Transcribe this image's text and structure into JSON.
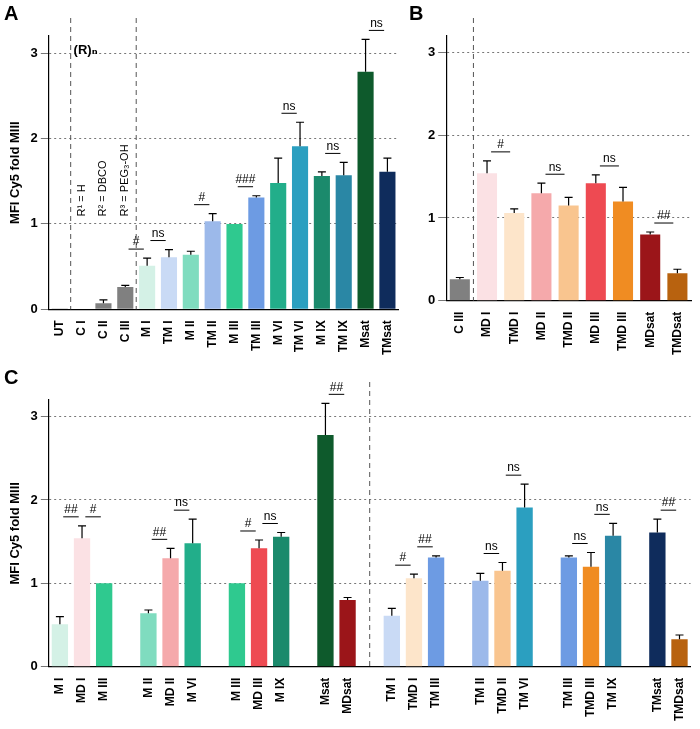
{
  "chart_data": [
    {
      "type": "bar",
      "panel": "A",
      "y_label": "MFI Cy5 fold MIII",
      "repeat_label": "(R)ₙ",
      "substituents": [
        "R¹ = H",
        "R² = DBCO",
        "R³ = PEG₃-OH"
      ],
      "categories": [
        "UT",
        "C I",
        "C II",
        "C III",
        "M I",
        "TM I",
        "M II",
        "TM II",
        "M III",
        "TM III",
        "M VI",
        "TM VI",
        "M IX",
        "TM IX",
        "Msat",
        "TMsat"
      ],
      "values": [
        0.01,
        0.0,
        0.07,
        0.26,
        0.51,
        0.61,
        0.64,
        1.03,
        1.0,
        1.31,
        1.48,
        1.91,
        1.56,
        1.57,
        2.78,
        1.61
      ],
      "errors": [
        null,
        null,
        0.04,
        0.02,
        0.09,
        0.09,
        0.04,
        0.09,
        null,
        0.02,
        0.29,
        0.28,
        0.05,
        0.15,
        0.38,
        0.16
      ],
      "colors": [
        "#808080",
        "#808080",
        "#808080",
        "#808080",
        "#d4f1e6",
        "#c9daf5",
        "#7fdcbf",
        "#9cb9ea",
        "#2fc98f",
        "#6d9be3",
        "#22ae8a",
        "#2b9fc0",
        "#1b8a6c",
        "#2a87a5",
        "#0e5a2c",
        "#0f2c5c"
      ],
      "significance": [
        {
          "between": [
            "C III",
            "M I"
          ],
          "text": "#"
        },
        {
          "between": [
            "M I",
            "TM I"
          ],
          "text": "ns"
        },
        {
          "between": [
            "M II",
            "TM II"
          ],
          "text": "#"
        },
        {
          "between": [
            "M III",
            "TM III"
          ],
          "text": "###"
        },
        {
          "between": [
            "M VI",
            "TM VI"
          ],
          "text": "ns"
        },
        {
          "between": [
            "M IX",
            "TM IX"
          ],
          "text": "ns"
        },
        {
          "between": [
            "Msat",
            "TMsat"
          ],
          "text": "ns"
        }
      ],
      "ylim": [
        0,
        3.2
      ],
      "yticks": [
        0,
        1,
        2,
        3
      ],
      "grid": true
    },
    {
      "type": "bar",
      "panel": "B",
      "categories": [
        "C III",
        "MD I",
        "TMD I",
        "MD II",
        "TMD II",
        "MD III",
        "TMD III",
        "MDsat",
        "TMDsat"
      ],
      "values": [
        0.26,
        1.54,
        1.06,
        1.3,
        1.15,
        1.42,
        1.2,
        0.8,
        0.33
      ],
      "errors": [
        0.02,
        0.15,
        0.05,
        0.12,
        0.1,
        0.1,
        0.17,
        0.03,
        0.05
      ],
      "colors": [
        "#808080",
        "#fbe1e4",
        "#fde5ca",
        "#f5a9ab",
        "#f9c58f",
        "#ee4a52",
        "#f08c22",
        "#9b1519",
        "#b8620f"
      ],
      "significance": [
        {
          "between": [
            "MD I",
            "TMD I"
          ],
          "text": "#"
        },
        {
          "between": [
            "MD II",
            "TMD II"
          ],
          "text": "ns"
        },
        {
          "between": [
            "MD III",
            "TMD III"
          ],
          "text": "ns"
        },
        {
          "between": [
            "MDsat",
            "TMDsat"
          ],
          "text": "##"
        }
      ],
      "ylim": [
        0,
        3.2
      ],
      "yticks": [
        0,
        1,
        2,
        3
      ],
      "grid": true
    },
    {
      "type": "bar",
      "panel": "C",
      "y_label": "MFI Cy5 fold MIII",
      "categories": [
        "M I",
        "MD I",
        "M III",
        null,
        "M II",
        "MD II",
        "M VI",
        null,
        "M III",
        "MD III",
        "M IX",
        null,
        "Msat",
        "MDsat",
        null,
        "TM I",
        "TMD I",
        "TM III",
        null,
        "TM II",
        "TMD II",
        "TM VI",
        null,
        "TM III",
        "TMD III",
        "TM IX",
        null,
        "TMsat",
        "TMDsat"
      ],
      "values": [
        0.51,
        1.54,
        1.0,
        null,
        0.64,
        1.3,
        1.48,
        null,
        1.0,
        1.42,
        1.56,
        null,
        2.78,
        0.8,
        null,
        0.61,
        1.06,
        1.31,
        null,
        1.03,
        1.15,
        1.91,
        null,
        1.31,
        1.2,
        1.57,
        null,
        1.61,
        0.33
      ],
      "errors": [
        0.09,
        0.15,
        null,
        null,
        0.04,
        0.12,
        0.29,
        null,
        null,
        0.1,
        0.05,
        null,
        0.38,
        0.03,
        null,
        0.09,
        0.05,
        0.02,
        null,
        0.09,
        0.1,
        0.28,
        null,
        0.02,
        0.17,
        0.15,
        null,
        0.16,
        0.05
      ],
      "colors": [
        "#d4f1e6",
        "#fbe1e4",
        "#2fc98f",
        null,
        "#7fdcbf",
        "#f5a9ab",
        "#22ae8a",
        null,
        "#2fc98f",
        "#ee4a52",
        "#1b8a6c",
        null,
        "#0e5a2c",
        "#9b1519",
        null,
        "#c9daf5",
        "#fde5ca",
        "#6d9be3",
        null,
        "#9cb9ea",
        "#f9c58f",
        "#2b9fc0",
        null,
        "#6d9be3",
        "#f08c22",
        "#2a87a5",
        null,
        "#0f2c5c",
        "#b8620f"
      ],
      "significance": [
        {
          "between": [
            "M I",
            "MD I"
          ],
          "text": "##"
        },
        {
          "between": [
            "MD I",
            "M III"
          ],
          "text": "#"
        },
        {
          "between": [
            "M II",
            "MD II"
          ],
          "text": "##"
        },
        {
          "between": [
            "MD II",
            "M VI"
          ],
          "text": "ns"
        },
        {
          "between": [
            "M III",
            "MD III"
          ],
          "text": "#"
        },
        {
          "between": [
            "MD III",
            "M IX"
          ],
          "text": "ns"
        },
        {
          "between": [
            "Msat",
            "MDsat"
          ],
          "text": "##"
        },
        {
          "between": [
            "TM I",
            "TMD I"
          ],
          "text": "#"
        },
        {
          "between": [
            "TMD I",
            "TM III"
          ],
          "text": "##"
        },
        {
          "between": [
            "TM II",
            "TMD II"
          ],
          "text": "ns"
        },
        {
          "between": [
            "TMD II",
            "TM VI"
          ],
          "text": "ns"
        },
        {
          "between": [
            "TM III",
            "TMD III"
          ],
          "text": "ns"
        },
        {
          "between": [
            "TMD III",
            "TM IX"
          ],
          "text": "ns"
        },
        {
          "between": [
            "TMsat",
            "TMDsat"
          ],
          "text": "##"
        }
      ],
      "ylim": [
        0,
        3.2
      ],
      "yticks": [
        0,
        1,
        2,
        3
      ],
      "grid": true
    }
  ]
}
